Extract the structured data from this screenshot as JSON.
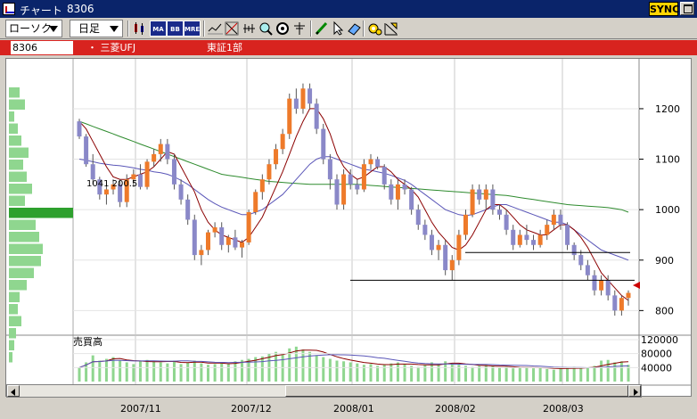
{
  "window": {
    "title": "チャート",
    "code": "8306",
    "sync_label": "SYNC"
  },
  "toolbar": {
    "chart_type": "ローソク",
    "period": "日足",
    "icons": [
      "candle-settings-icon",
      "ma-icon",
      "bb-icon",
      "mre-icon",
      "trend-icon",
      "cross-icon",
      "magnifier-icon",
      "config-icon",
      "crosshair-icon",
      "pencil-icon",
      "pointer-icon",
      "eraser-icon",
      "gear-icon",
      "line-draw-icon"
    ],
    "icon_labels": {
      "ma": "MA",
      "bb": "BB",
      "mre": "MRE"
    }
  },
  "symbol": {
    "code": "8306",
    "name": "・ 三菱UFJ",
    "market": "東証1部"
  },
  "price_axis": {
    "ticks": [
      "1200",
      "1100",
      "1000",
      "900",
      "800"
    ],
    "ylim": [
      760,
      1290
    ]
  },
  "volume_axis": {
    "title": "売買高",
    "ticks": [
      "120000",
      "80000",
      "40000"
    ]
  },
  "volume_profile_label": "1041 200.5",
  "dates": [
    "2007/11",
    "2007/12",
    "2008/01",
    "2008/02",
    "2008/03"
  ],
  "chart_data": {
    "type": "candlestick",
    "up_color": "#ee7a2a",
    "down_color": "#8a88c8",
    "ma_short_color": "#8b0000",
    "ma_mid_color": "#5a56b8",
    "ma_long_color": "#2e8b2e",
    "support_lines": [
      860,
      915
    ],
    "candles": [
      [
        1175,
        1180,
        1140,
        1145
      ],
      [
        1145,
        1150,
        1085,
        1090
      ],
      [
        1090,
        1110,
        1050,
        1060
      ],
      [
        1060,
        1065,
        1020,
        1030
      ],
      [
        1030,
        1050,
        1010,
        1040
      ],
      [
        1040,
        1060,
        1030,
        1050
      ],
      [
        1050,
        1060,
        1005,
        1015
      ],
      [
        1015,
        1070,
        1005,
        1060
      ],
      [
        1060,
        1080,
        1045,
        1070
      ],
      [
        1070,
        1090,
        1040,
        1045
      ],
      [
        1045,
        1100,
        1040,
        1095
      ],
      [
        1095,
        1120,
        1085,
        1110
      ],
      [
        1110,
        1140,
        1095,
        1130
      ],
      [
        1130,
        1140,
        1090,
        1100
      ],
      [
        1100,
        1110,
        1040,
        1050
      ],
      [
        1050,
        1060,
        1010,
        1020
      ],
      [
        1020,
        1030,
        970,
        980
      ],
      [
        980,
        990,
        900,
        910
      ],
      [
        910,
        930,
        890,
        920
      ],
      [
        920,
        960,
        910,
        955
      ],
      [
        955,
        975,
        945,
        965
      ],
      [
        965,
        975,
        920,
        930
      ],
      [
        930,
        950,
        915,
        945
      ],
      [
        945,
        960,
        920,
        925
      ],
      [
        925,
        940,
        905,
        935
      ],
      [
        935,
        1000,
        930,
        995
      ],
      [
        995,
        1040,
        990,
        1035
      ],
      [
        1035,
        1070,
        1020,
        1060
      ],
      [
        1060,
        1100,
        1050,
        1090
      ],
      [
        1090,
        1130,
        1080,
        1120
      ],
      [
        1120,
        1160,
        1110,
        1150
      ],
      [
        1150,
        1230,
        1140,
        1220
      ],
      [
        1220,
        1240,
        1190,
        1200
      ],
      [
        1200,
        1250,
        1190,
        1240
      ],
      [
        1240,
        1250,
        1200,
        1210
      ],
      [
        1210,
        1220,
        1150,
        1160
      ],
      [
        1160,
        1170,
        1090,
        1100
      ],
      [
        1100,
        1110,
        1040,
        1060
      ],
      [
        1060,
        1070,
        1000,
        1010
      ],
      [
        1010,
        1080,
        1000,
        1070
      ],
      [
        1070,
        1080,
        1040,
        1050
      ],
      [
        1050,
        1060,
        1030,
        1040
      ],
      [
        1040,
        1100,
        1035,
        1090
      ],
      [
        1090,
        1110,
        1080,
        1100
      ],
      [
        1100,
        1105,
        1080,
        1085
      ],
      [
        1085,
        1090,
        1040,
        1050
      ],
      [
        1050,
        1060,
        1010,
        1020
      ],
      [
        1020,
        1060,
        1000,
        1050
      ],
      [
        1050,
        1060,
        1030,
        1040
      ],
      [
        1040,
        1045,
        990,
        1000
      ],
      [
        1000,
        1010,
        960,
        970
      ],
      [
        970,
        980,
        940,
        950
      ],
      [
        950,
        960,
        910,
        920
      ],
      [
        920,
        940,
        900,
        930
      ],
      [
        930,
        940,
        870,
        880
      ],
      [
        880,
        910,
        860,
        900
      ],
      [
        900,
        960,
        890,
        950
      ],
      [
        950,
        1000,
        940,
        990
      ],
      [
        990,
        1050,
        985,
        1040
      ],
      [
        1040,
        1050,
        1010,
        1020
      ],
      [
        1020,
        1050,
        1000,
        1040
      ],
      [
        1040,
        1050,
        990,
        1000
      ],
      [
        1000,
        1010,
        980,
        990
      ],
      [
        990,
        1000,
        950,
        960
      ],
      [
        960,
        970,
        920,
        930
      ],
      [
        930,
        960,
        925,
        950
      ],
      [
        950,
        970,
        930,
        940
      ],
      [
        940,
        950,
        920,
        930
      ],
      [
        930,
        960,
        925,
        950
      ],
      [
        950,
        980,
        940,
        970
      ],
      [
        970,
        1000,
        960,
        990
      ],
      [
        990,
        1000,
        960,
        970
      ],
      [
        970,
        975,
        920,
        930
      ],
      [
        930,
        935,
        900,
        910
      ],
      [
        910,
        920,
        880,
        890
      ],
      [
        890,
        900,
        860,
        870
      ],
      [
        870,
        880,
        830,
        840
      ],
      [
        840,
        870,
        830,
        860
      ],
      [
        860,
        870,
        820,
        830
      ],
      [
        830,
        840,
        790,
        800
      ],
      [
        800,
        830,
        790,
        825
      ],
      [
        825,
        840,
        810,
        835
      ]
    ],
    "volume": [
      40,
      55,
      75,
      60,
      65,
      70,
      60,
      55,
      50,
      60,
      62,
      58,
      55,
      52,
      60,
      50,
      55,
      60,
      52,
      48,
      50,
      55,
      50,
      58,
      62,
      65,
      70,
      72,
      80,
      85,
      78,
      95,
      100,
      92,
      85,
      75,
      70,
      65,
      60,
      58,
      55,
      52,
      48,
      50,
      45,
      48,
      52,
      55,
      50,
      45,
      42,
      48,
      55,
      50,
      58,
      52,
      48,
      45,
      42,
      45,
      48,
      44,
      40,
      42,
      38,
      40,
      42,
      38,
      40,
      36,
      34,
      38,
      40,
      42,
      38,
      40,
      45,
      60,
      62,
      55,
      58,
      48
    ],
    "ma_short": [
      1175,
      1160,
      1135,
      1110,
      1085,
      1065,
      1060,
      1060,
      1065,
      1070,
      1075,
      1085,
      1100,
      1115,
      1110,
      1085,
      1060,
      1035,
      1000,
      975,
      960,
      950,
      945,
      940,
      935,
      945,
      965,
      985,
      1015,
      1045,
      1075,
      1110,
      1145,
      1175,
      1200,
      1200,
      1180,
      1150,
      1110,
      1085,
      1070,
      1060,
      1065,
      1075,
      1085,
      1085,
      1075,
      1060,
      1050,
      1040,
      1025,
      1000,
      975,
      955,
      940,
      925,
      920,
      930,
      950,
      975,
      1000,
      1010,
      1010,
      1000,
      985,
      970,
      960,
      955,
      950,
      950,
      960,
      970,
      970,
      960,
      945,
      925,
      900,
      875,
      860,
      845,
      830,
      820
    ],
    "ma_mid": [
      1100,
      1098,
      1095,
      1092,
      1090,
      1088,
      1087,
      1085,
      1083,
      1080,
      1078,
      1075,
      1073,
      1070,
      1065,
      1058,
      1050,
      1040,
      1030,
      1020,
      1012,
      1005,
      1000,
      995,
      990,
      990,
      995,
      1000,
      1010,
      1020,
      1030,
      1045,
      1060,
      1075,
      1090,
      1100,
      1105,
      1105,
      1100,
      1095,
      1090,
      1085,
      1080,
      1078,
      1075,
      1072,
      1068,
      1063,
      1058,
      1050,
      1040,
      1030,
      1020,
      1010,
      1000,
      995,
      990,
      988,
      990,
      995,
      1000,
      1005,
      1010,
      1010,
      1005,
      1000,
      995,
      990,
      985,
      980,
      975,
      975,
      970,
      960,
      950,
      940,
      930,
      920,
      915,
      910,
      905,
      900
    ],
    "ma_long": [
      1175,
      1170,
      1165,
      1160,
      1155,
      1150,
      1145,
      1140,
      1135,
      1130,
      1125,
      1120,
      1115,
      1110,
      1105,
      1100,
      1095,
      1090,
      1085,
      1080,
      1075,
      1070,
      1068,
      1066,
      1064,
      1062,
      1060,
      1058,
      1056,
      1055,
      1054,
      1053,
      1052,
      1051,
      1050,
      1050,
      1050,
      1050,
      1050,
      1050,
      1050,
      1050,
      1049,
      1048,
      1047,
      1046,
      1045,
      1044,
      1043,
      1042,
      1041,
      1040,
      1039,
      1038,
      1037,
      1036,
      1035,
      1034,
      1033,
      1032,
      1031,
      1030,
      1029,
      1028,
      1026,
      1024,
      1022,
      1020,
      1018,
      1016,
      1014,
      1012,
      1010,
      1009,
      1008,
      1007,
      1006,
      1005,
      1004,
      1002,
      1000,
      995
    ]
  }
}
